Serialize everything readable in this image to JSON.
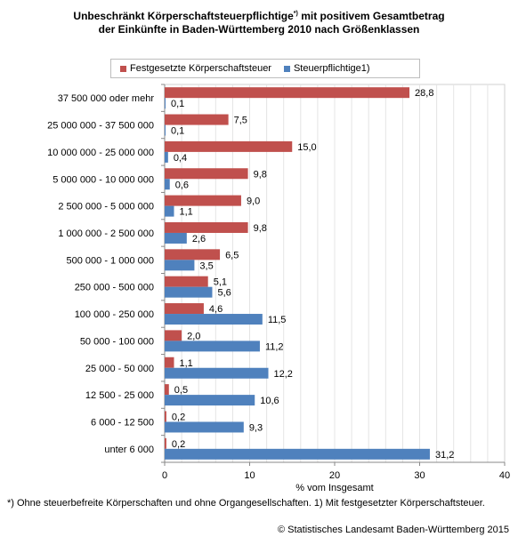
{
  "title_line1": "Unbeschränkt Körperschaftsteuerpflichtige",
  "title_sup": "*)",
  "title_line1_rest": " mit positivem Gesamtbetrag",
  "title_line2": "der Einkünfte in Baden-Württemberg 2010 nach Größenklassen",
  "footnote": "*) Ohne steuerbefreite Körperschaften und ohne Organgesellschaften. 1) Mit festgesetzter Körperschaftsteuer.",
  "copyright": "© Statistisches Landesamt Baden-Württemberg 2015",
  "colors": {
    "red": "#c0504d",
    "blue": "#4f81bd"
  },
  "chart_data": {
    "type": "bar",
    "orientation": "horizontal",
    "xlabel": "% vom Insgesamt",
    "xlim": [
      0,
      40
    ],
    "xticks": [
      0,
      10,
      20,
      30,
      40
    ],
    "grid": true,
    "legend_position": "top",
    "categories": [
      "37 500 000 oder mehr",
      "25 000 000 - 37 500 000",
      "10 000 000 - 25 000 000",
      "5 000 000 - 10 000 000",
      "2 500 000 -  5 000 000",
      "1 000 000 - 2 500 000",
      "500 000 -  1 000 000",
      "250 000 -  500 000",
      "100 000 -  250 000",
      "50 000 -  100 000",
      "25 000 -  50 000",
      "12 500 -   25 000",
      "6 000 - 12 500",
      "unter 6 000"
    ],
    "series": [
      {
        "name": "Festgesetzte Körperschaftsteuer",
        "color": "#c0504d",
        "values": [
          28.8,
          7.5,
          15.0,
          9.8,
          9.0,
          9.8,
          6.5,
          5.1,
          4.6,
          2.0,
          1.1,
          0.5,
          0.2,
          0.2
        ],
        "labels": [
          "28,8",
          "7,5",
          "15,0",
          "9,8",
          "9,0",
          "9,8",
          "6,5",
          "5,1",
          "4,6",
          "2,0",
          "1,1",
          "0,5",
          "0,2",
          "0,2"
        ]
      },
      {
        "name": "Steuerpflichtige1)",
        "color": "#4f81bd",
        "values": [
          0.1,
          0.1,
          0.4,
          0.6,
          1.1,
          2.6,
          3.5,
          5.6,
          11.5,
          11.2,
          12.2,
          10.6,
          9.3,
          31.2
        ],
        "labels": [
          "0,1",
          "0,1",
          "0,4",
          "0,6",
          "1,1",
          "2,6",
          "3,5",
          "5,6",
          "11,5",
          "11,2",
          "12,2",
          "10,6",
          "9,3",
          "31,2"
        ]
      }
    ]
  }
}
